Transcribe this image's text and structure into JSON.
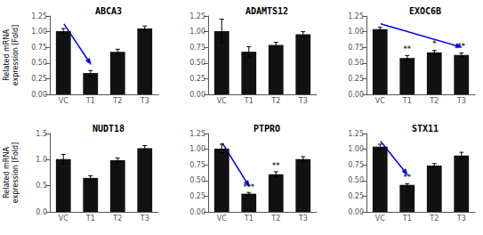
{
  "chart_data": [
    {
      "type": "bar",
      "title": "ABCA3",
      "categories": [
        "VC",
        "T1",
        "T2",
        "T3"
      ],
      "values": [
        1.01,
        0.34,
        0.68,
        1.05
      ],
      "errors": [
        0.04,
        0.04,
        0.04,
        0.04
      ],
      "color": "#111111",
      "ylim": [
        0,
        1.25
      ],
      "yticks": [
        {
          "value": 0.0,
          "label": "0.00"
        },
        0.25,
        {
          "value": 0.5,
          "label": "0.50"
        },
        0.75,
        {
          "value": 1.0,
          "label": "1.00"
        },
        1.25
      ],
      "ylabel": "Related mRNA\nexpression [Fold]",
      "grid": false,
      "significance": [],
      "arrow": {
        "x1_frac": 0.13,
        "y1_frac": 0.9,
        "x2_frac": 0.38,
        "y2_frac": 0.38,
        "color": "#0000EE"
      }
    },
    {
      "type": "bar",
      "title": "ADAMTS12",
      "categories": [
        "VC",
        "T1",
        "T2",
        "T3"
      ],
      "values": [
        1.01,
        0.68,
        0.79,
        0.96
      ],
      "errors": [
        0.19,
        0.08,
        0.04,
        0.04
      ],
      "color": "#111111",
      "ylim": [
        0,
        1.25
      ],
      "yticks": [
        {
          "value": 0.0,
          "label": "0.00"
        },
        0.25,
        {
          "value": 0.5,
          "label": "0.50"
        },
        0.75,
        {
          "value": 1.0,
          "label": "1.00"
        },
        1.25
      ],
      "grid": false,
      "significance": []
    },
    {
      "type": "bar",
      "title": "EXOC6B",
      "categories": [
        "VC",
        "T1",
        "T2",
        "T3"
      ],
      "values": [
        1.04,
        0.58,
        0.67,
        0.63
      ],
      "errors": [
        0.03,
        0.04,
        0.03,
        0.03
      ],
      "color": "#111111",
      "ylim": [
        0,
        1.25
      ],
      "yticks": [
        {
          "value": 0.0,
          "label": "0.00"
        },
        0.25,
        {
          "value": 0.5,
          "label": "0.50"
        },
        0.75,
        {
          "value": 1.0,
          "label": "1.00"
        },
        1.25
      ],
      "grid": false,
      "significance": [
        {
          "x": "T1",
          "y": 0.66,
          "text": "**"
        },
        {
          "x": "T2",
          "y": 0.74,
          "text": "*"
        },
        {
          "x": "T3",
          "y": 0.7,
          "text": "**"
        }
      ],
      "arrow": {
        "x1_frac": 0.13,
        "y1_frac": 0.9,
        "x2_frac": 0.88,
        "y2_frac": 0.6,
        "color": "#0000EE"
      }
    },
    {
      "type": "bar",
      "title": "NUDT18",
      "categories": [
        "VC",
        "T1",
        "T2",
        "T3"
      ],
      "values": [
        1.01,
        0.65,
        0.99,
        1.22
      ],
      "errors": [
        0.09,
        0.04,
        0.04,
        0.05
      ],
      "color": "#111111",
      "ylim": [
        0,
        1.5
      ],
      "yticks": [
        {
          "value": 0.0,
          "label": "0.0"
        },
        0.5,
        {
          "value": 1.0,
          "label": "1.0"
        },
        1.5
      ],
      "ylabel": "Related mRNA\nexpression [Fold]",
      "grid": false,
      "significance": []
    },
    {
      "type": "bar",
      "title": "PTPRO",
      "categories": [
        "VC",
        "T1",
        "T2",
        "T3"
      ],
      "values": [
        1.01,
        0.29,
        0.6,
        0.84
      ],
      "errors": [
        0.07,
        0.02,
        0.04,
        0.04
      ],
      "color": "#111111",
      "ylim": [
        0,
        1.25
      ],
      "yticks": [
        {
          "value": 0.0,
          "label": "0.00"
        },
        0.25,
        {
          "value": 0.5,
          "label": "0.50"
        },
        0.75,
        {
          "value": 1.0,
          "label": "1.00"
        },
        1.25
      ],
      "grid": false,
      "significance": [
        {
          "x": "T1",
          "y": 0.34,
          "text": "***"
        },
        {
          "x": "T2",
          "y": 0.67,
          "text": "**"
        }
      ],
      "arrow": {
        "x1_frac": 0.13,
        "y1_frac": 0.88,
        "x2_frac": 0.38,
        "y2_frac": 0.32,
        "color": "#0000EE"
      }
    },
    {
      "type": "bar",
      "title": "STX11",
      "categories": [
        "VC",
        "T1",
        "T2",
        "T3"
      ],
      "values": [
        1.04,
        0.43,
        0.74,
        0.9
      ],
      "errors": [
        0.04,
        0.02,
        0.03,
        0.05
      ],
      "color": "#111111",
      "ylim": [
        0,
        1.25
      ],
      "yticks": [
        {
          "value": 0.0,
          "label": "0.00"
        },
        0.25,
        {
          "value": 0.5,
          "label": "0.50"
        },
        0.75,
        {
          "value": 1.0,
          "label": "1.00"
        },
        1.25
      ],
      "grid": false,
      "significance": [
        {
          "x": "T1",
          "y": 0.49,
          "text": "**"
        }
      ],
      "arrow": {
        "x1_frac": 0.13,
        "y1_frac": 0.9,
        "x2_frac": 0.38,
        "y2_frac": 0.47,
        "color": "#0000EE"
      }
    }
  ]
}
